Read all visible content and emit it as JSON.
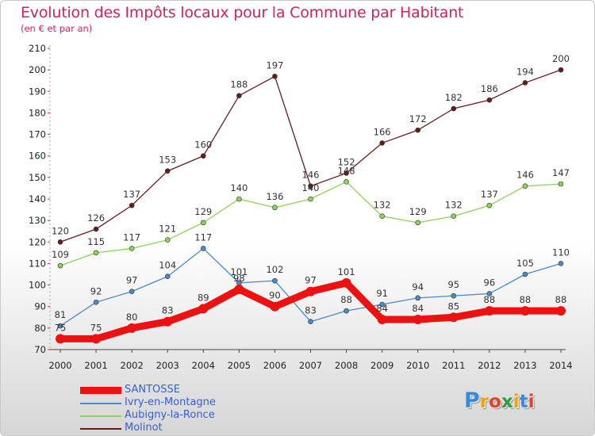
{
  "header": {
    "title": "Evolution des Impôts locaux pour la Commune par Habitant",
    "subtitle": "(en € et par an)"
  },
  "logo": {
    "text": "Proxiti",
    "colors": [
      "#3b8ad9",
      "#f0a30a",
      "#e8402a",
      "#2e9c3e",
      "#f0a30a",
      "#3b8ad9",
      "#e8402a"
    ]
  },
  "chart_data": {
    "type": "line",
    "x": [
      2000,
      2001,
      2002,
      2003,
      2004,
      2005,
      2006,
      2007,
      2008,
      2009,
      2010,
      2011,
      2012,
      2013,
      2014
    ],
    "ylim": [
      70,
      210
    ],
    "yticks": [
      70,
      80,
      90,
      100,
      110,
      120,
      130,
      140,
      150,
      160,
      170,
      180,
      190,
      200,
      210
    ],
    "grid": false,
    "legend_position": "bottom-left",
    "series": [
      {
        "name": "Molinot",
        "color": "#6b1a1a",
        "values": [
          120,
          126,
          137,
          153,
          160,
          188,
          197,
          146,
          152,
          166,
          172,
          182,
          186,
          194,
          200
        ]
      },
      {
        "name": "Aubigny-la-Ronce",
        "color": "#8cd35a",
        "values": [
          109,
          115,
          117,
          121,
          129,
          140,
          136,
          140,
          148,
          132,
          129,
          132,
          137,
          146,
          147
        ]
      },
      {
        "name": "Ivry-en-Montagne",
        "color": "#4a8ac9",
        "values": [
          81,
          92,
          97,
          104,
          117,
          101,
          102,
          83,
          88,
          91,
          94,
          95,
          96,
          105,
          110
        ]
      },
      {
        "name": "SANTOSSE",
        "color": "#ee1111",
        "values": [
          75,
          75,
          80,
          83,
          89,
          98,
          90,
          97,
          101,
          84,
          84,
          85,
          88,
          88,
          88
        ]
      }
    ],
    "legend_order": [
      "SANTOSSE",
      "Ivry-en-Montagne",
      "Aubigny-la-Ronce",
      "Molinot"
    ]
  }
}
